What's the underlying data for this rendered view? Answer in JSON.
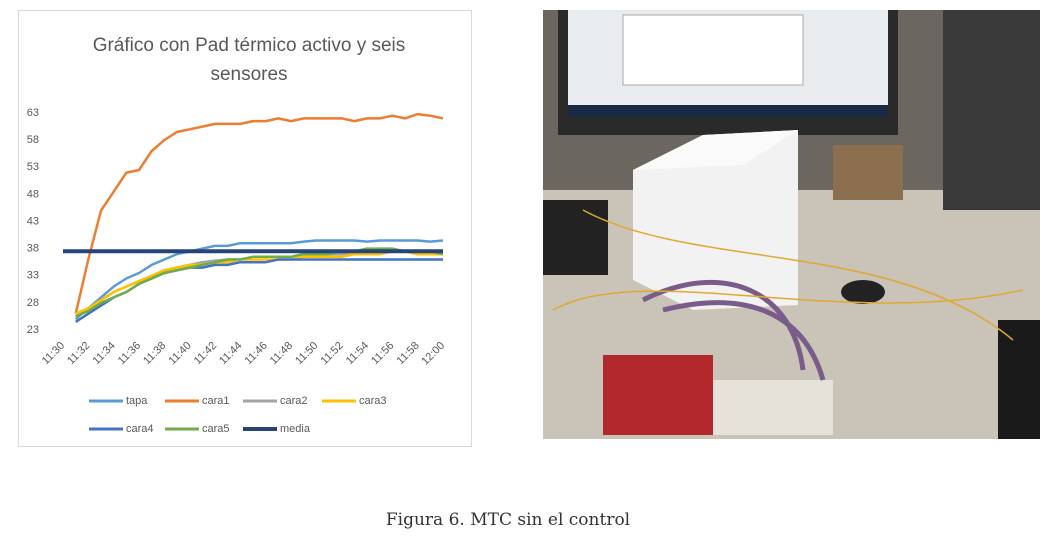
{
  "chart_data": {
    "type": "line",
    "title": "Gráfico con Pad térmico activo y seis sensores",
    "categories": [
      "11:30",
      null,
      "11:32",
      null,
      "11:34",
      null,
      "11:36",
      null,
      "11:38",
      null,
      "11:40",
      null,
      "11:42",
      null,
      "11:44",
      null,
      "11:46",
      null,
      "11:48",
      null,
      "11:50",
      null,
      "11:52",
      null,
      "11:54",
      null,
      "11:56",
      null,
      "11:58",
      null,
      "12:00"
    ],
    "series": [
      {
        "name": "tapa",
        "color": "#5b9bd5",
        "values": [
          null,
          25,
          27,
          29,
          31,
          32.5,
          33.5,
          35,
          36,
          37,
          37.5,
          38,
          38.5,
          38.5,
          39,
          39,
          39,
          39,
          39,
          39.3,
          39.5,
          39.5,
          39.5,
          39.5,
          39.3,
          39.5,
          39.5,
          39.5,
          39.5,
          39.3,
          39.5
        ]
      },
      {
        "name": "cara1",
        "color": "#ed7d31",
        "values": [
          null,
          26,
          36,
          45,
          48.5,
          52,
          52.5,
          56,
          58,
          59.5,
          60,
          60.5,
          61,
          61,
          61,
          61.5,
          61.5,
          62,
          61.5,
          62,
          62,
          62,
          62,
          61.5,
          62,
          62,
          62.5,
          62,
          62.8,
          62.5,
          62
        ]
      },
      {
        "name": "cara2",
        "color": "#a5a5a5",
        "values": [
          null,
          25.5,
          27,
          28.5,
          30,
          31,
          32,
          33,
          34,
          34.5,
          35,
          35.5,
          35.8,
          36,
          36,
          36.5,
          36.5,
          36.5,
          36.5,
          37,
          37,
          37,
          37,
          37,
          37,
          37,
          37.5,
          37.5,
          37,
          37,
          37
        ]
      },
      {
        "name": "cara3",
        "color": "#ffc000",
        "values": [
          null,
          26,
          27,
          28.5,
          30,
          31,
          32,
          33,
          34,
          34.5,
          35,
          35,
          35.5,
          35.5,
          36,
          36,
          36,
          36,
          36,
          36.5,
          36.5,
          36.5,
          36.5,
          37,
          37,
          37,
          37.5,
          37.5,
          37,
          37,
          37
        ]
      },
      {
        "name": "cara4",
        "color": "#4472c4",
        "values": [
          null,
          24.5,
          26,
          27.5,
          29,
          30,
          31.5,
          32.5,
          33.5,
          34,
          34.5,
          34.5,
          35,
          35,
          35.5,
          35.5,
          35.5,
          36,
          36,
          36,
          36,
          36,
          36,
          36,
          36,
          36,
          36,
          36,
          36,
          36,
          36
        ]
      },
      {
        "name": "cara5",
        "color": "#70ad47",
        "values": [
          null,
          25.5,
          26.5,
          28,
          29,
          30,
          31.5,
          32.5,
          33.5,
          34,
          34.5,
          35,
          35.5,
          36,
          36,
          36.5,
          36.5,
          36.5,
          36.5,
          37,
          37,
          37,
          37.5,
          37.5,
          38,
          38,
          38,
          37.5,
          37.5,
          37.5,
          37
        ]
      },
      {
        "name": "media",
        "color": "#264478",
        "values": [
          37.5,
          37.5,
          37.5,
          37.5,
          37.5,
          37.5,
          37.5,
          37.5,
          37.5,
          37.5,
          37.5,
          37.5,
          37.5,
          37.5,
          37.5,
          37.5,
          37.5,
          37.5,
          37.5,
          37.5,
          37.5,
          37.5,
          37.5,
          37.5,
          37.5,
          37.5,
          37.5,
          37.5,
          37.5,
          37.5,
          37.5
        ]
      }
    ],
    "ylim": [
      23,
      63
    ],
    "yticks": [
      23,
      28,
      33,
      38,
      43,
      48,
      53,
      58,
      63
    ],
    "grid": false
  },
  "caption": "Figura 6. MTC sin el control"
}
